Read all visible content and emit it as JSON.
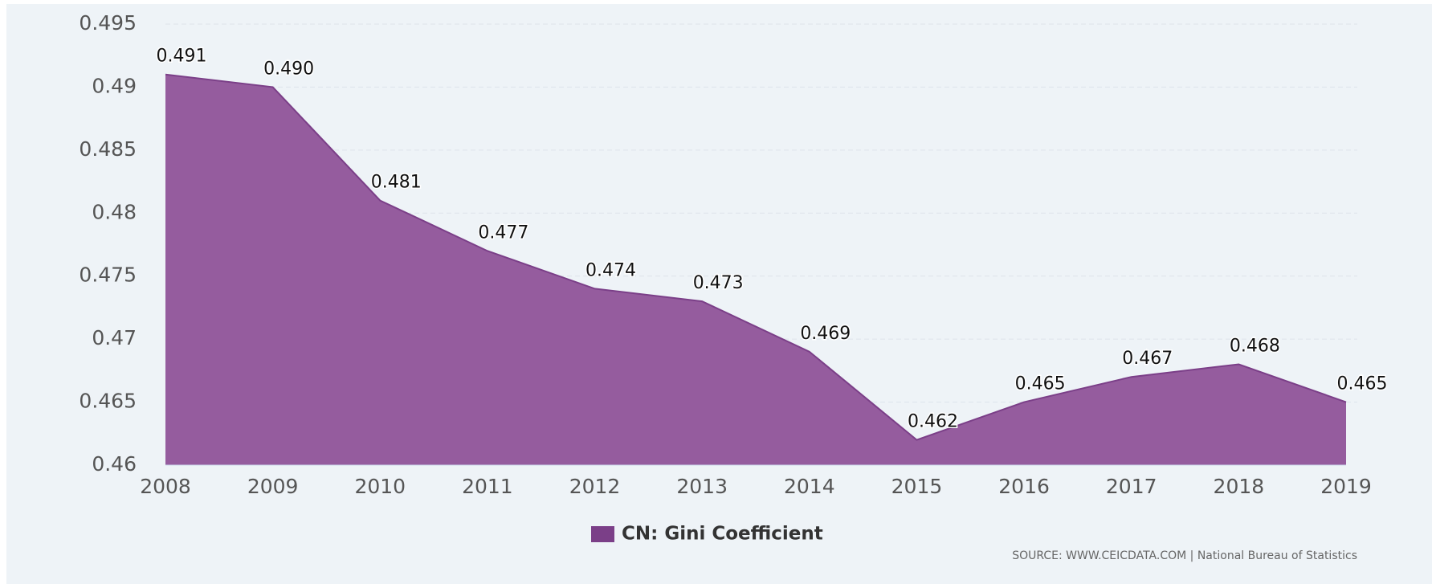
{
  "chart_data": {
    "type": "area",
    "categories": [
      "2008",
      "2009",
      "2010",
      "2011",
      "2012",
      "2013",
      "2014",
      "2015",
      "2016",
      "2017",
      "2018",
      "2019"
    ],
    "series": [
      {
        "name": "CN: Gini Coefficient",
        "color": "#955c9e",
        "values": [
          0.491,
          0.49,
          0.481,
          0.477,
          0.474,
          0.473,
          0.469,
          0.462,
          0.465,
          0.467,
          0.468,
          0.465
        ],
        "value_labels": [
          "0.491",
          "0.490",
          "0.481",
          "0.477",
          "0.474",
          "0.473",
          "0.469",
          "0.462",
          "0.465",
          "0.467",
          "0.468",
          "0.465"
        ]
      }
    ],
    "ylim": [
      0.46,
      0.495
    ],
    "yticks": [
      0.46,
      0.465,
      0.47,
      0.475,
      0.48,
      0.485,
      0.49,
      0.495
    ],
    "grid": true,
    "legend": "bottom",
    "source": "SOURCE: WWW.CEICDATA.COM | National Bureau of Statistics"
  }
}
